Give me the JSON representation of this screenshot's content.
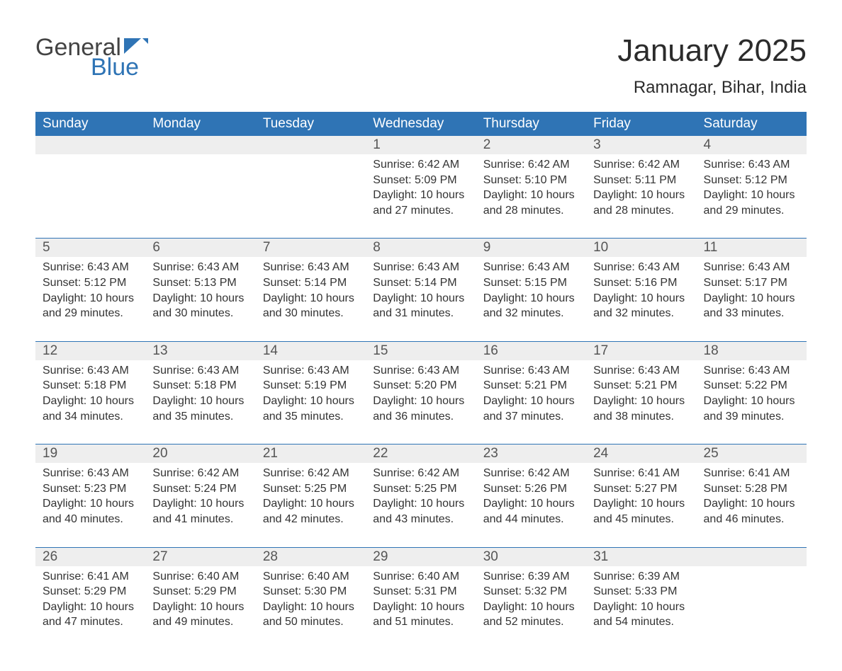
{
  "logo": {
    "word1": "General",
    "word2": "Blue",
    "flag_color": "#2f74b5"
  },
  "title": "January 2025",
  "location": "Ramnagar, Bihar, India",
  "colors": {
    "header_bg": "#2f74b5",
    "header_text": "#ffffff",
    "daynum_bg": "#eeeeee",
    "row_border": "#2f74b5",
    "text": "#333333"
  },
  "day_headers": [
    "Sunday",
    "Monday",
    "Tuesday",
    "Wednesday",
    "Thursday",
    "Friday",
    "Saturday"
  ],
  "weeks": [
    [
      null,
      null,
      null,
      {
        "n": "1",
        "sunrise": "6:42 AM",
        "sunset": "5:09 PM",
        "daylight": "10 hours and 27 minutes."
      },
      {
        "n": "2",
        "sunrise": "6:42 AM",
        "sunset": "5:10 PM",
        "daylight": "10 hours and 28 minutes."
      },
      {
        "n": "3",
        "sunrise": "6:42 AM",
        "sunset": "5:11 PM",
        "daylight": "10 hours and 28 minutes."
      },
      {
        "n": "4",
        "sunrise": "6:43 AM",
        "sunset": "5:12 PM",
        "daylight": "10 hours and 29 minutes."
      }
    ],
    [
      {
        "n": "5",
        "sunrise": "6:43 AM",
        "sunset": "5:12 PM",
        "daylight": "10 hours and 29 minutes."
      },
      {
        "n": "6",
        "sunrise": "6:43 AM",
        "sunset": "5:13 PM",
        "daylight": "10 hours and 30 minutes."
      },
      {
        "n": "7",
        "sunrise": "6:43 AM",
        "sunset": "5:14 PM",
        "daylight": "10 hours and 30 minutes."
      },
      {
        "n": "8",
        "sunrise": "6:43 AM",
        "sunset": "5:14 PM",
        "daylight": "10 hours and 31 minutes."
      },
      {
        "n": "9",
        "sunrise": "6:43 AM",
        "sunset": "5:15 PM",
        "daylight": "10 hours and 32 minutes."
      },
      {
        "n": "10",
        "sunrise": "6:43 AM",
        "sunset": "5:16 PM",
        "daylight": "10 hours and 32 minutes."
      },
      {
        "n": "11",
        "sunrise": "6:43 AM",
        "sunset": "5:17 PM",
        "daylight": "10 hours and 33 minutes."
      }
    ],
    [
      {
        "n": "12",
        "sunrise": "6:43 AM",
        "sunset": "5:18 PM",
        "daylight": "10 hours and 34 minutes."
      },
      {
        "n": "13",
        "sunrise": "6:43 AM",
        "sunset": "5:18 PM",
        "daylight": "10 hours and 35 minutes."
      },
      {
        "n": "14",
        "sunrise": "6:43 AM",
        "sunset": "5:19 PM",
        "daylight": "10 hours and 35 minutes."
      },
      {
        "n": "15",
        "sunrise": "6:43 AM",
        "sunset": "5:20 PM",
        "daylight": "10 hours and 36 minutes."
      },
      {
        "n": "16",
        "sunrise": "6:43 AM",
        "sunset": "5:21 PM",
        "daylight": "10 hours and 37 minutes."
      },
      {
        "n": "17",
        "sunrise": "6:43 AM",
        "sunset": "5:21 PM",
        "daylight": "10 hours and 38 minutes."
      },
      {
        "n": "18",
        "sunrise": "6:43 AM",
        "sunset": "5:22 PM",
        "daylight": "10 hours and 39 minutes."
      }
    ],
    [
      {
        "n": "19",
        "sunrise": "6:43 AM",
        "sunset": "5:23 PM",
        "daylight": "10 hours and 40 minutes."
      },
      {
        "n": "20",
        "sunrise": "6:42 AM",
        "sunset": "5:24 PM",
        "daylight": "10 hours and 41 minutes."
      },
      {
        "n": "21",
        "sunrise": "6:42 AM",
        "sunset": "5:25 PM",
        "daylight": "10 hours and 42 minutes."
      },
      {
        "n": "22",
        "sunrise": "6:42 AM",
        "sunset": "5:25 PM",
        "daylight": "10 hours and 43 minutes."
      },
      {
        "n": "23",
        "sunrise": "6:42 AM",
        "sunset": "5:26 PM",
        "daylight": "10 hours and 44 minutes."
      },
      {
        "n": "24",
        "sunrise": "6:41 AM",
        "sunset": "5:27 PM",
        "daylight": "10 hours and 45 minutes."
      },
      {
        "n": "25",
        "sunrise": "6:41 AM",
        "sunset": "5:28 PM",
        "daylight": "10 hours and 46 minutes."
      }
    ],
    [
      {
        "n": "26",
        "sunrise": "6:41 AM",
        "sunset": "5:29 PM",
        "daylight": "10 hours and 47 minutes."
      },
      {
        "n": "27",
        "sunrise": "6:40 AM",
        "sunset": "5:29 PM",
        "daylight": "10 hours and 49 minutes."
      },
      {
        "n": "28",
        "sunrise": "6:40 AM",
        "sunset": "5:30 PM",
        "daylight": "10 hours and 50 minutes."
      },
      {
        "n": "29",
        "sunrise": "6:40 AM",
        "sunset": "5:31 PM",
        "daylight": "10 hours and 51 minutes."
      },
      {
        "n": "30",
        "sunrise": "6:39 AM",
        "sunset": "5:32 PM",
        "daylight": "10 hours and 52 minutes."
      },
      {
        "n": "31",
        "sunrise": "6:39 AM",
        "sunset": "5:33 PM",
        "daylight": "10 hours and 54 minutes."
      },
      null
    ]
  ],
  "labels": {
    "sunrise": "Sunrise:",
    "sunset": "Sunset:",
    "daylight": "Daylight:"
  }
}
